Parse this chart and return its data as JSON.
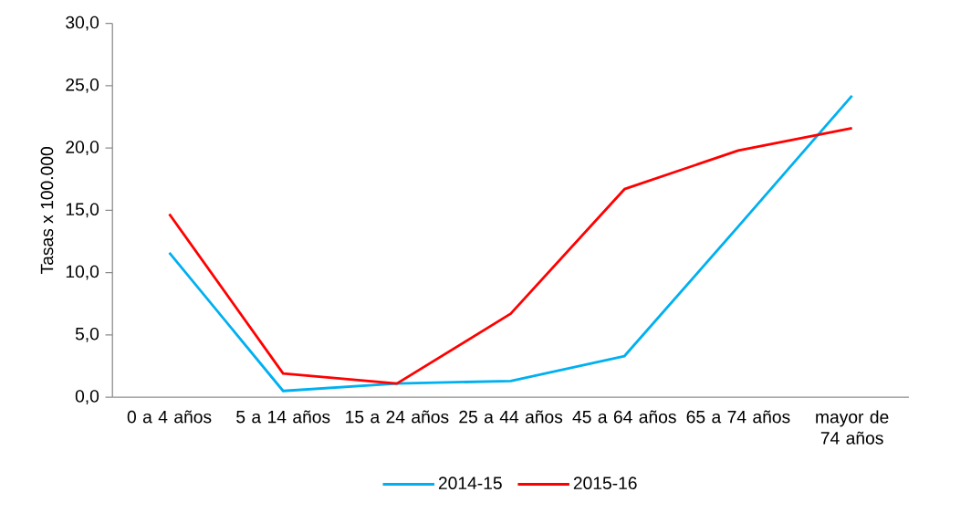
{
  "chart_data": {
    "type": "line",
    "ylabel": "Tasas x 100.000",
    "categories": [
      "0 a 4 años",
      "5 a 14 años",
      "15 a 24 años",
      "25 a 44 años",
      "45 a 64 años",
      "65 a 74 años",
      "mayor de 74 años"
    ],
    "series": [
      {
        "name": "2014-15",
        "color": "#00b0f0",
        "values": [
          11.6,
          0.5,
          1.1,
          1.3,
          3.3,
          13.7,
          24.2
        ]
      },
      {
        "name": "2015-16",
        "color": "#ff0000",
        "values": [
          14.7,
          1.9,
          1.1,
          6.7,
          16.7,
          19.8,
          21.6
        ]
      }
    ],
    "ylim": [
      0,
      30
    ],
    "yticks": [
      {
        "value": 0,
        "label": "0,0"
      },
      {
        "value": 5,
        "label": "5,0"
      },
      {
        "value": 10,
        "label": "10,0"
      },
      {
        "value": 15,
        "label": "15,0"
      },
      {
        "value": 20,
        "label": "20,0"
      },
      {
        "value": 25,
        "label": "25,0"
      },
      {
        "value": 30,
        "label": "30,0"
      }
    ],
    "legend": "bottom"
  }
}
